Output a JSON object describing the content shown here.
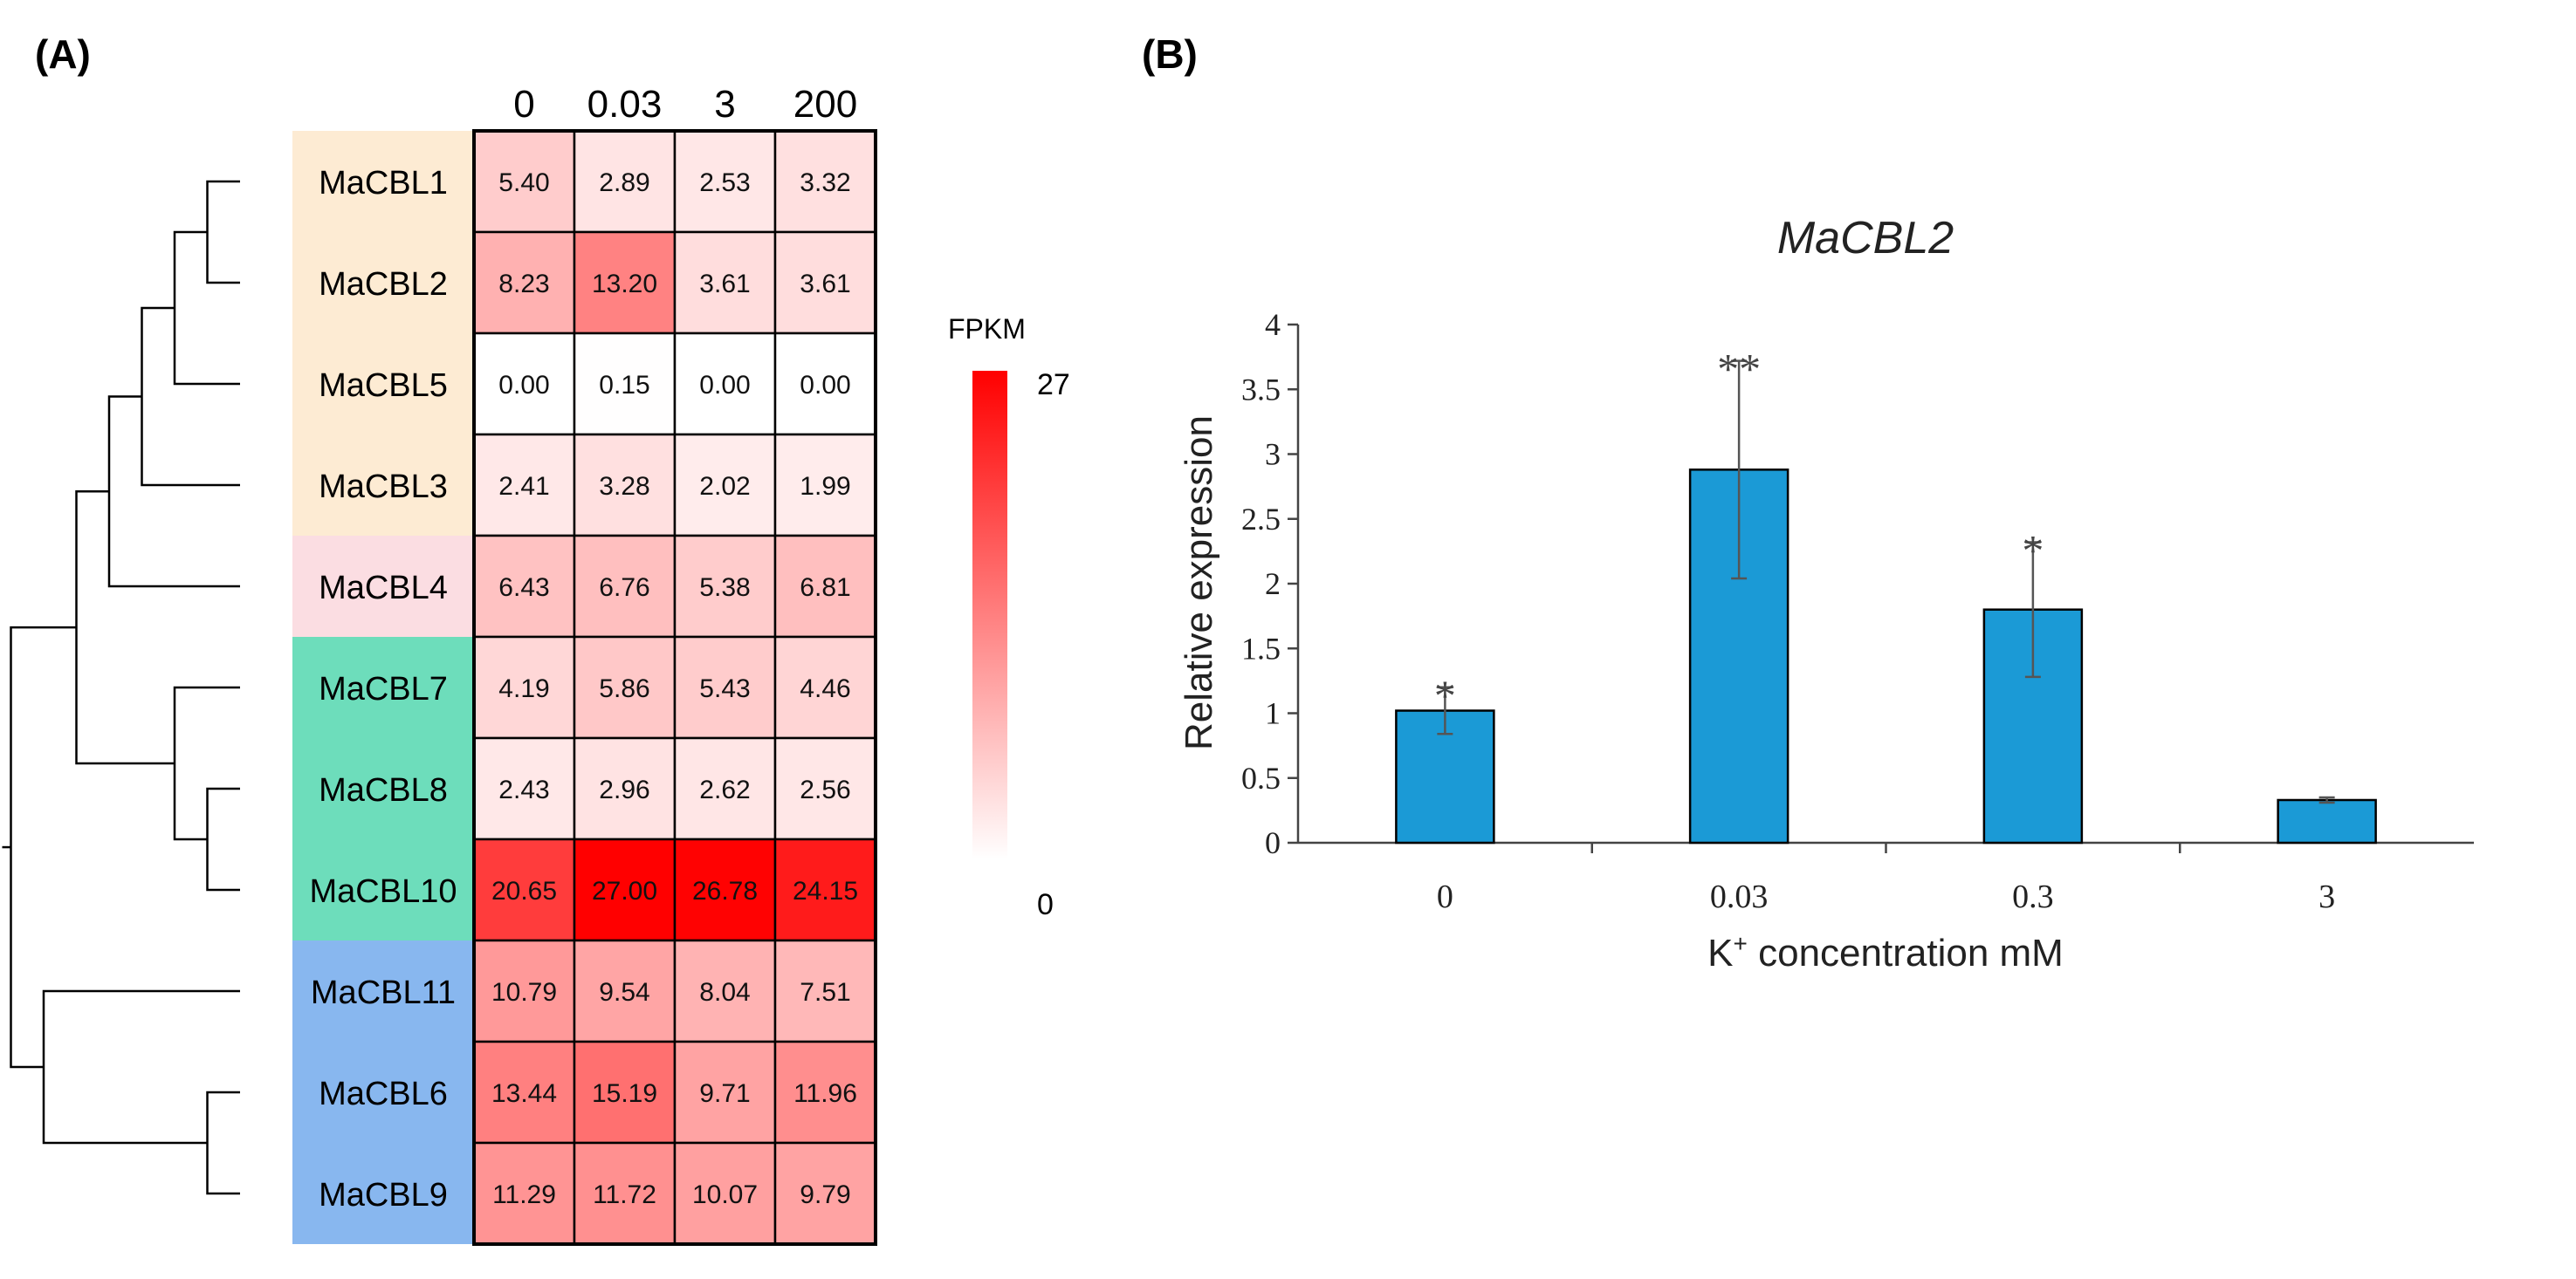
{
  "panel_labels": {
    "a": "(A)",
    "b": "(B)"
  },
  "colors": {
    "group_orange": "#fdebd3",
    "group_pink": "#fbdde2",
    "group_green": "#6dddbb",
    "group_blue": "#88b7ef",
    "bar": "#1b9ad6",
    "heat_low": "#ffffff",
    "heat_high": "#ff0000"
  },
  "chart_data": [
    {
      "type": "heatmap",
      "title": "",
      "columns": [
        "0",
        "0.03",
        "3",
        "200"
      ],
      "rows": [
        "MaCBL1",
        "MaCBL2",
        "MaCBL5",
        "MaCBL3",
        "MaCBL4",
        "MaCBL7",
        "MaCBL8",
        "MaCBL10",
        "MaCBL11",
        "MaCBL6",
        "MaCBL9"
      ],
      "row_groups": [
        "orange",
        "orange",
        "orange",
        "orange",
        "pink",
        "green",
        "green",
        "green",
        "blue",
        "blue",
        "blue"
      ],
      "values": [
        [
          "5.40",
          "2.89",
          "2.53",
          "3.32"
        ],
        [
          "8.23",
          "13.20",
          "3.61",
          "3.61"
        ],
        [
          "0.00",
          "0.15",
          "0.00",
          "0.00"
        ],
        [
          "2.41",
          "3.28",
          "2.02",
          "1.99"
        ],
        [
          "6.43",
          "6.76",
          "5.38",
          "6.81"
        ],
        [
          "4.19",
          "5.86",
          "5.43",
          "4.46"
        ],
        [
          "2.43",
          "2.96",
          "2.62",
          "2.56"
        ],
        [
          "20.65",
          "27.00",
          "26.78",
          "24.15"
        ],
        [
          "10.79",
          "9.54",
          "8.04",
          "7.51"
        ],
        [
          "13.44",
          "15.19",
          "9.71",
          "11.96"
        ],
        [
          "11.29",
          "11.72",
          "10.07",
          "9.79"
        ]
      ],
      "colorbar": {
        "label": "FPKM",
        "min": 0,
        "max": 27,
        "min_label": "0",
        "max_label": "27"
      },
      "dendrogram": {
        "leaves": [
          "MaCBL1",
          "MaCBL2",
          "MaCBL5",
          "MaCBL3",
          "MaCBL4",
          "MaCBL7",
          "MaCBL8",
          "MaCBL10",
          "MaCBL11",
          "MaCBL6",
          "MaCBL9"
        ],
        "merges": [
          [
            0,
            1,
            1
          ],
          [
            11,
            2,
            2
          ],
          [
            12,
            3,
            3
          ],
          [
            13,
            4,
            4
          ],
          [
            6,
            7,
            1
          ],
          [
            5,
            15,
            2
          ],
          [
            14,
            16,
            5
          ],
          [
            9,
            10,
            1
          ],
          [
            8,
            18,
            6
          ],
          [
            17,
            19,
            7
          ]
        ]
      }
    },
    {
      "type": "bar",
      "title": "MaCBL2",
      "categories": [
        "0",
        "0.03",
        "0.3",
        "3"
      ],
      "values": [
        1.02,
        2.88,
        1.8,
        0.33
      ],
      "errors": [
        0.18,
        0.84,
        0.52,
        0.02
      ],
      "significance": [
        "*",
        "**",
        "*",
        ""
      ],
      "xlabel_prefix": "K",
      "xlabel_sup": "+",
      "xlabel_suffix": " concentration mM",
      "ylabel": "Relative expression",
      "ylim": [
        0,
        4
      ],
      "yticks": [
        "0",
        "0.5",
        "1",
        "1.5",
        "2",
        "2.5",
        "3",
        "3.5",
        "4"
      ]
    }
  ]
}
